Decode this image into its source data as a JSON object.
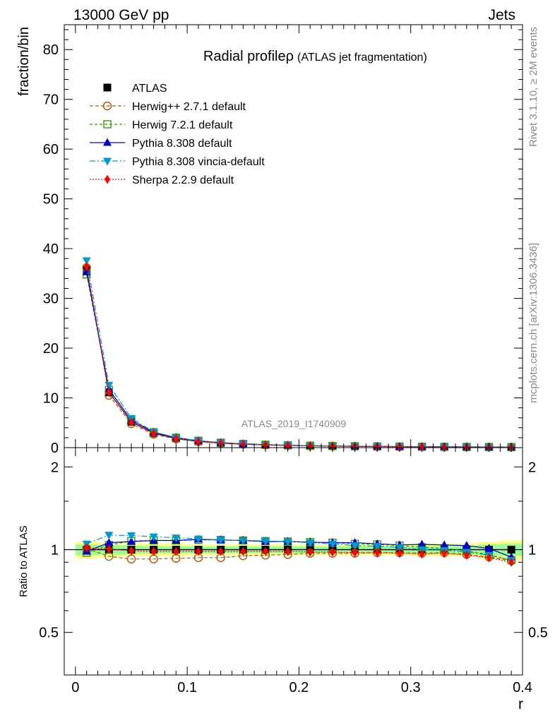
{
  "header": {
    "left": "13000 GeV pp",
    "right": "Jets"
  },
  "side_labels": {
    "rivet": "Rivet 3.1.10, ≥ 2M events",
    "mcplots": "mcplots.cern.ch [arXiv:1306.3436]"
  },
  "watermark": "ATLAS_2019_I1740909",
  "chart_data": [
    {
      "type": "line",
      "title": "Radial profile",
      "title_symbol": "ρ",
      "subtitle": "(ATLAS jet fragmentation)",
      "ylabel": "fraction/bin",
      "xlabel": "",
      "xlim": [
        -0.01,
        0.4
      ],
      "ylim": [
        0,
        85
      ],
      "yticks": [
        0,
        10,
        20,
        30,
        40,
        50,
        60,
        70,
        80
      ],
      "ytick_labels": [
        "0",
        "10",
        "20",
        "30",
        "40",
        "50",
        "60",
        "70",
        "80"
      ],
      "x": [
        0.01,
        0.03,
        0.05,
        0.07,
        0.09,
        0.11,
        0.13,
        0.15,
        0.17,
        0.19,
        0.21,
        0.23,
        0.25,
        0.27,
        0.29,
        0.31,
        0.33,
        0.35,
        0.37,
        0.39
      ],
      "legend_position": "top-left",
      "series": [
        {
          "name": "ATLAS",
          "color": "#000000",
          "marker": "square-filled",
          "dash": "",
          "values": [
            35.8,
            11.1,
            5.2,
            2.9,
            1.85,
            1.27,
            0.92,
            0.7,
            0.55,
            0.45,
            0.37,
            0.31,
            0.27,
            0.23,
            0.2,
            0.18,
            0.16,
            0.14,
            0.13,
            0.12
          ]
        },
        {
          "name": "Herwig++ 2.7.1 default",
          "color": "#b35900",
          "marker": "circle-open",
          "dash": "5,3",
          "values": [
            36.2,
            10.5,
            4.8,
            2.7,
            1.75,
            1.2,
            0.87,
            0.67,
            0.53,
            0.44,
            0.36,
            0.3,
            0.26,
            0.22,
            0.19,
            0.17,
            0.15,
            0.13,
            0.12,
            0.11
          ]
        },
        {
          "name": "Herwig 7.2.1 default",
          "color": "#339900",
          "marker": "square-open",
          "dash": "4,3",
          "values": [
            34.8,
            11.6,
            5.6,
            3.1,
            2.0,
            1.38,
            1.0,
            0.76,
            0.59,
            0.48,
            0.39,
            0.33,
            0.28,
            0.24,
            0.21,
            0.18,
            0.16,
            0.14,
            0.13,
            0.11
          ]
        },
        {
          "name": "Pythia 8.308 default",
          "color": "#0000cc",
          "marker": "triangle-up",
          "dash": "",
          "values": [
            35.3,
            11.7,
            5.5,
            3.1,
            2.0,
            1.39,
            1.0,
            0.76,
            0.59,
            0.48,
            0.39,
            0.33,
            0.28,
            0.24,
            0.21,
            0.19,
            0.17,
            0.14,
            0.13,
            0.11
          ]
        },
        {
          "name": "Pythia 8.308 vincia-default",
          "color": "#0099cc",
          "marker": "triangle-down",
          "dash": "8,3,2,3",
          "values": [
            37.6,
            12.6,
            5.9,
            3.2,
            2.03,
            1.39,
            1.0,
            0.76,
            0.59,
            0.48,
            0.39,
            0.32,
            0.28,
            0.24,
            0.2,
            0.18,
            0.16,
            0.14,
            0.12,
            0.11
          ]
        },
        {
          "name": "Sherpa 2.2.9 default",
          "color": "#ff0000",
          "marker": "diamond",
          "dash": "2,2",
          "values": [
            36.4,
            11.2,
            5.1,
            2.85,
            1.83,
            1.25,
            0.91,
            0.7,
            0.55,
            0.45,
            0.36,
            0.31,
            0.26,
            0.22,
            0.19,
            0.17,
            0.15,
            0.13,
            0.12,
            0.11
          ]
        }
      ]
    },
    {
      "type": "line",
      "ylabel": "Ratio to ATLAS",
      "xlabel": "r",
      "xlim": [
        -0.01,
        0.4
      ],
      "ylim": [
        0.35,
        2.35
      ],
      "yticks": [
        0.5,
        1,
        2
      ],
      "ytick_labels": [
        "0.5",
        "1",
        "2"
      ],
      "xticks": [
        0,
        0.1,
        0.2,
        0.3,
        0.4
      ],
      "xtick_labels": [
        "0",
        "0.1",
        "0.2",
        "0.3",
        "0.4"
      ],
      "reference_line": 1,
      "x": [
        0.01,
        0.03,
        0.05,
        0.07,
        0.09,
        0.11,
        0.13,
        0.15,
        0.17,
        0.19,
        0.21,
        0.23,
        0.25,
        0.27,
        0.29,
        0.31,
        0.33,
        0.35,
        0.37,
        0.39
      ],
      "uncertainty_bands": {
        "outer_color": "#ffff80",
        "inner_color": "#99ff99",
        "outer_halfwidth": [
          0.07,
          0.06,
          0.055,
          0.05,
          0.05,
          0.045,
          0.045,
          0.045,
          0.045,
          0.045,
          0.045,
          0.045,
          0.045,
          0.045,
          0.045,
          0.05,
          0.05,
          0.055,
          0.07,
          0.08
        ],
        "inner_halfwidth": [
          0.045,
          0.04,
          0.035,
          0.03,
          0.03,
          0.028,
          0.028,
          0.028,
          0.028,
          0.028,
          0.028,
          0.028,
          0.028,
          0.028,
          0.028,
          0.03,
          0.03,
          0.035,
          0.045,
          0.05
        ]
      },
      "series": [
        {
          "name": "ATLAS",
          "color": "#000000",
          "marker": "square-filled",
          "dash": "",
          "values": [
            1,
            1,
            1,
            1,
            1,
            1,
            1,
            1,
            1,
            1,
            1,
            1,
            1,
            1,
            1,
            1,
            1,
            1,
            1,
            1
          ]
        },
        {
          "name": "Herwig++ 2.7.1 default",
          "color": "#b35900",
          "marker": "circle-open",
          "dash": "5,3",
          "values": [
            1.01,
            0.945,
            0.925,
            0.925,
            0.93,
            0.935,
            0.935,
            0.95,
            0.955,
            0.96,
            0.97,
            0.97,
            0.97,
            0.975,
            0.975,
            0.97,
            0.975,
            0.96,
            0.94,
            0.91
          ]
        },
        {
          "name": "Herwig 7.2.1 default",
          "color": "#339900",
          "marker": "square-open",
          "dash": "4,3",
          "values": [
            0.975,
            1.04,
            1.075,
            1.08,
            1.08,
            1.085,
            1.085,
            1.08,
            1.075,
            1.07,
            1.065,
            1.06,
            1.05,
            1.045,
            1.035,
            1.02,
            1.01,
            0.99,
            0.96,
            0.915
          ]
        },
        {
          "name": "Pythia 8.308 default",
          "color": "#0000cc",
          "marker": "triangle-up",
          "dash": "",
          "values": [
            0.985,
            1.06,
            1.07,
            1.08,
            1.08,
            1.09,
            1.085,
            1.08,
            1.07,
            1.07,
            1.065,
            1.06,
            1.06,
            1.05,
            1.04,
            1.045,
            1.04,
            1.035,
            1.01,
            0.94
          ]
        },
        {
          "name": "Pythia 8.308 vincia-default",
          "color": "#0099cc",
          "marker": "triangle-down",
          "dash": "8,3,2,3",
          "values": [
            1.05,
            1.13,
            1.125,
            1.115,
            1.105,
            1.095,
            1.085,
            1.08,
            1.075,
            1.07,
            1.06,
            1.05,
            1.035,
            1.03,
            1.02,
            1.0,
            0.995,
            0.98,
            0.955,
            0.915
          ]
        },
        {
          "name": "Sherpa 2.2.9 default",
          "color": "#ff0000",
          "marker": "diamond",
          "dash": "2,2",
          "values": [
            1.015,
            1.005,
            0.99,
            0.985,
            0.985,
            0.985,
            0.985,
            0.985,
            0.985,
            0.985,
            0.98,
            0.98,
            0.975,
            0.975,
            0.97,
            0.965,
            0.97,
            0.955,
            0.935,
            0.9
          ]
        }
      ]
    }
  ]
}
